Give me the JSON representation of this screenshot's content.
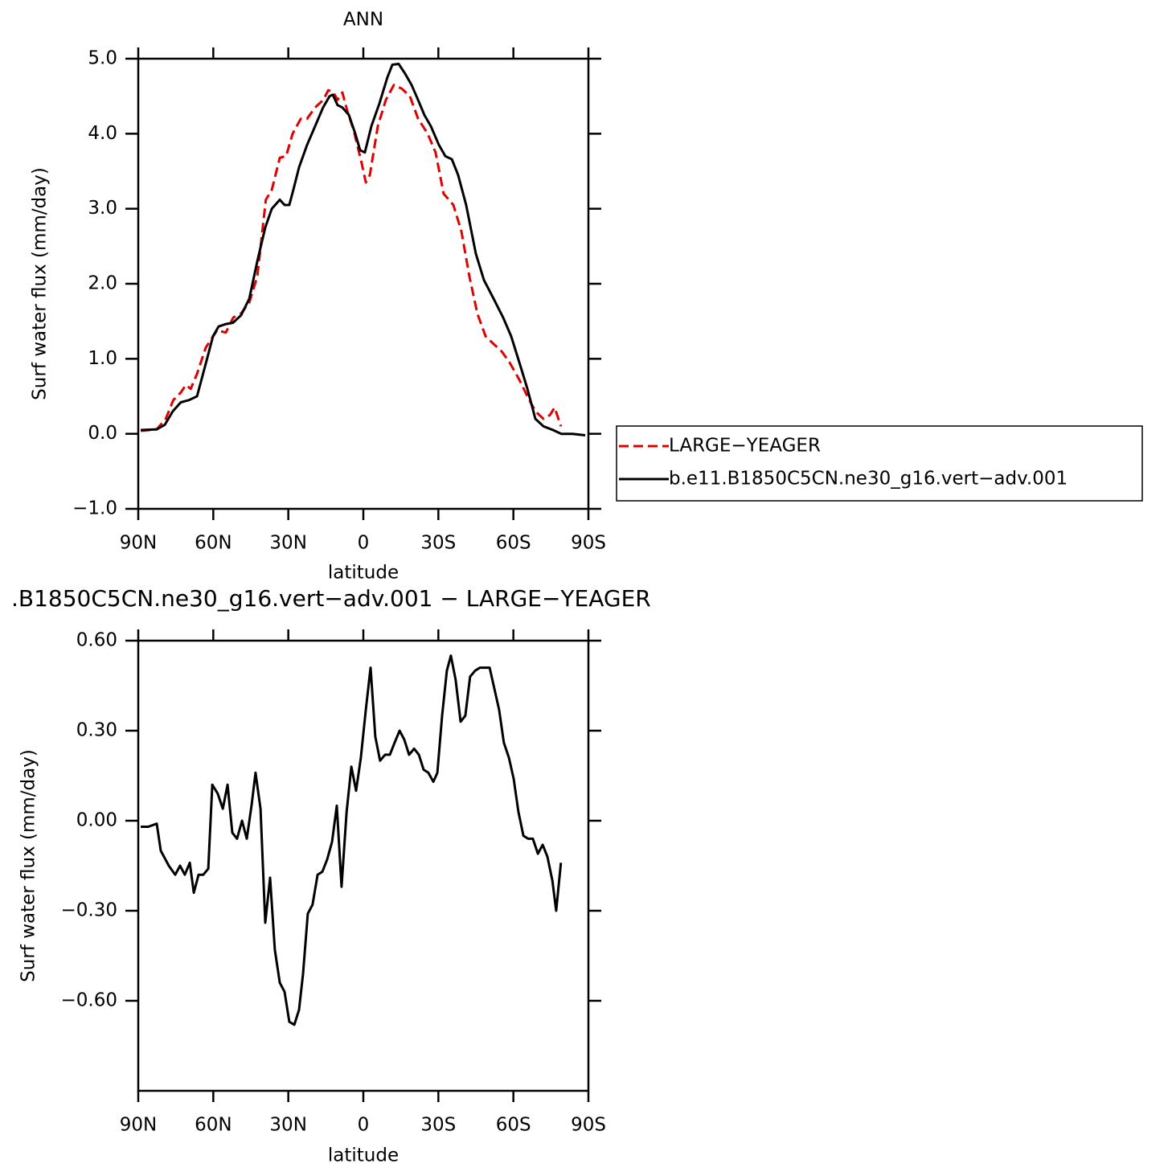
{
  "chart_data": [
    {
      "type": "line",
      "title": "ANN",
      "xlabel": "latitude",
      "ylabel": "Surf  water  flux  (mm/day)",
      "xlim": [
        90,
        -90
      ],
      "xticks": [
        {
          "value": 90,
          "label": "90N"
        },
        {
          "value": 60,
          "label": "60N"
        },
        {
          "value": 30,
          "label": "30N"
        },
        0,
        {
          "value": -30,
          "label": "30S"
        },
        {
          "value": -60,
          "label": "60S"
        },
        {
          "value": -90,
          "label": "90S"
        }
      ],
      "ylim": [
        -1,
        5
      ],
      "yticks": [
        {
          "value": 5,
          "label": "5.0"
        },
        {
          "value": 4,
          "label": "4.0"
        },
        {
          "value": 3,
          "label": "3.0"
        },
        {
          "value": 2,
          "label": "2.0"
        },
        {
          "value": 1,
          "label": "1.0"
        },
        {
          "value": 0,
          "label": "0.0"
        },
        {
          "value": -1,
          "label": "−1.0"
        }
      ],
      "legend": "right",
      "series": [
        {
          "name": "LARGE−YEAGER",
          "color": "#e00000",
          "linestyle": "dashed",
          "x": [
            89,
            82.6,
            79,
            76,
            73,
            71,
            69,
            66.5,
            63,
            61,
            58.5,
            55,
            52,
            49,
            45.6,
            42.4,
            39,
            36.6,
            33.4,
            30.9,
            28.3,
            25,
            22.5,
            19.3,
            16,
            14,
            12,
            10.3,
            8.4,
            6.4,
            3.9,
            0.6,
            -1,
            -2.6,
            -5.8,
            -9,
            -12.2,
            -15.4,
            -18.6,
            -21.9,
            -25.7,
            -28.9,
            -32.1,
            -36,
            -39.2,
            -42.4,
            -45.6,
            -48.9,
            -52,
            -55.3,
            -58.5,
            -62.4,
            -65.6,
            -68.8,
            -72,
            -74.6,
            -76.5,
            -79
          ],
          "values": [
            0.04,
            0.06,
            0.2,
            0.45,
            0.55,
            0.65,
            0.6,
            0.8,
            1.15,
            1.25,
            1.38,
            1.35,
            1.55,
            1.6,
            1.75,
            2.1,
            3.12,
            3.25,
            3.68,
            3.7,
            4.0,
            4.2,
            4.2,
            4.35,
            4.45,
            4.58,
            4.55,
            4.45,
            4.55,
            4.3,
            4.05,
            3.6,
            3.35,
            3.45,
            4.1,
            4.45,
            4.65,
            4.6,
            4.5,
            4.2,
            4.0,
            3.75,
            3.2,
            3.05,
            2.7,
            2.1,
            1.6,
            1.3,
            1.2,
            1.1,
            0.95,
            0.72,
            0.5,
            0.3,
            0.2,
            0.25,
            0.35,
            0.1
          ]
        },
        {
          "name": "b.e11.B1850C5CN.ne30_g16.vert−adv.001",
          "color": "#000000",
          "linestyle": "solid",
          "x": [
            89,
            82.6,
            79.4,
            76.2,
            73,
            69.7,
            66.5,
            63.3,
            60.1,
            57.9,
            55.3,
            52.1,
            48.9,
            45.6,
            42.4,
            39.2,
            36.6,
            33.4,
            31.5,
            29.6,
            28,
            25.7,
            22.5,
            19.3,
            16.1,
            13.5,
            12.2,
            10.3,
            8.4,
            5.8,
            3.2,
            1.3,
            -0.6,
            -3.2,
            -6.4,
            -9.6,
            -11.6,
            -14.1,
            -16.7,
            -19.3,
            -21.9,
            -24.4,
            -27,
            -30.2,
            -32.8,
            -35.4,
            -37.9,
            -41.1,
            -45,
            -48.2,
            -52.1,
            -55.9,
            -59.1,
            -62.4,
            -65.6,
            -68.8,
            -72,
            -75.9,
            -79.1,
            -83.6,
            -88.7
          ],
          "values": [
            0.05,
            0.06,
            0.12,
            0.3,
            0.42,
            0.45,
            0.5,
            0.9,
            1.3,
            1.43,
            1.46,
            1.48,
            1.58,
            1.8,
            2.3,
            2.75,
            3.0,
            3.12,
            3.05,
            3.05,
            3.25,
            3.55,
            3.85,
            4.1,
            4.35,
            4.5,
            4.52,
            4.38,
            4.35,
            4.25,
            4.0,
            3.78,
            3.75,
            4.1,
            4.4,
            4.75,
            4.92,
            4.93,
            4.8,
            4.65,
            4.45,
            4.25,
            4.1,
            3.85,
            3.7,
            3.66,
            3.45,
            3.05,
            2.4,
            2.05,
            1.8,
            1.55,
            1.3,
            0.95,
            0.6,
            0.2,
            0.1,
            0.05,
            0.0,
            0.0,
            -0.02
          ]
        }
      ]
    },
    {
      "type": "line",
      "title": ".B1850C5CN.ne30_g16.vert−adv.001  −  LARGE−YEAGER",
      "xlabel": "latitude",
      "ylabel": "Surf  water  flux  (mm/day)",
      "xlim": [
        90,
        -90
      ],
      "xticks": [
        {
          "value": 90,
          "label": "90N"
        },
        {
          "value": 60,
          "label": "60N"
        },
        {
          "value": 30,
          "label": "30N"
        },
        0,
        {
          "value": -30,
          "label": "30S"
        },
        {
          "value": -60,
          "label": "60S"
        },
        {
          "value": -90,
          "label": "90S"
        }
      ],
      "ylim": [
        -0.9,
        0.6
      ],
      "yticks": [
        {
          "value": 0.6,
          "label": "0.60"
        },
        {
          "value": 0.3,
          "label": "0.30"
        },
        {
          "value": 0,
          "label": "0.00"
        },
        {
          "value": -0.3,
          "label": "−0.30"
        },
        {
          "value": -0.6,
          "label": "−0.60"
        }
      ],
      "series": [
        {
          "color": "#000000",
          "linestyle": "solid",
          "x": [
            89,
            86,
            82.6,
            81,
            77.8,
            75.2,
            73.3,
            71.4,
            69.4,
            67.8,
            65.9,
            64,
            62,
            60.4,
            58.2,
            56.2,
            54.3,
            52.4,
            50.5,
            48.5,
            46.6,
            44.7,
            43.1,
            41.1,
            39.2,
            37.3,
            35.4,
            33.4,
            31.5,
            29.6,
            27.6,
            25.7,
            24.1,
            22.2,
            20.3,
            18.3,
            16.4,
            14.5,
            12.5,
            10.6,
            8.7,
            6.7,
            4.8,
            2.9,
            1,
            -1,
            -2.9,
            -4.8,
            -6.7,
            -8.7,
            -10.6,
            -12.5,
            -14.5,
            -16.4,
            -18.3,
            -20.3,
            -22.2,
            -24.1,
            -26,
            -28,
            -29.6,
            -31.5,
            -33.4,
            -35,
            -36.9,
            -38.9,
            -40.8,
            -42.7,
            -44.7,
            -46.6,
            -48.5,
            -50.5,
            -52.4,
            -54.3,
            -56.2,
            -58.2,
            -60.1,
            -62,
            -64,
            -65.9,
            -67.8,
            -69.8,
            -71.7,
            -73.6,
            -75.6,
            -77.1,
            -79
          ],
          "values": [
            -0.02,
            -0.02,
            -0.01,
            -0.1,
            -0.15,
            -0.18,
            -0.15,
            -0.18,
            -0.14,
            -0.24,
            -0.18,
            -0.18,
            -0.16,
            0.12,
            0.09,
            0.04,
            0.12,
            -0.04,
            -0.06,
            0.0,
            -0.06,
            0.05,
            0.16,
            0.04,
            -0.34,
            -0.19,
            -0.43,
            -0.54,
            -0.57,
            -0.67,
            -0.68,
            -0.63,
            -0.51,
            -0.31,
            -0.28,
            -0.18,
            -0.17,
            -0.13,
            -0.07,
            0.05,
            -0.22,
            0.03,
            0.18,
            0.1,
            0.21,
            0.37,
            0.51,
            0.28,
            0.2,
            0.22,
            0.22,
            0.26,
            0.3,
            0.27,
            0.22,
            0.24,
            0.22,
            0.17,
            0.16,
            0.13,
            0.16,
            0.35,
            0.5,
            0.55,
            0.47,
            0.33,
            0.35,
            0.48,
            0.5,
            0.51,
            0.51,
            0.51,
            0.44,
            0.37,
            0.26,
            0.21,
            0.14,
            0.03,
            -0.05,
            -0.06,
            -0.06,
            -0.11,
            -0.08,
            -0.12,
            -0.2,
            -0.3,
            -0.14
          ]
        }
      ]
    }
  ]
}
